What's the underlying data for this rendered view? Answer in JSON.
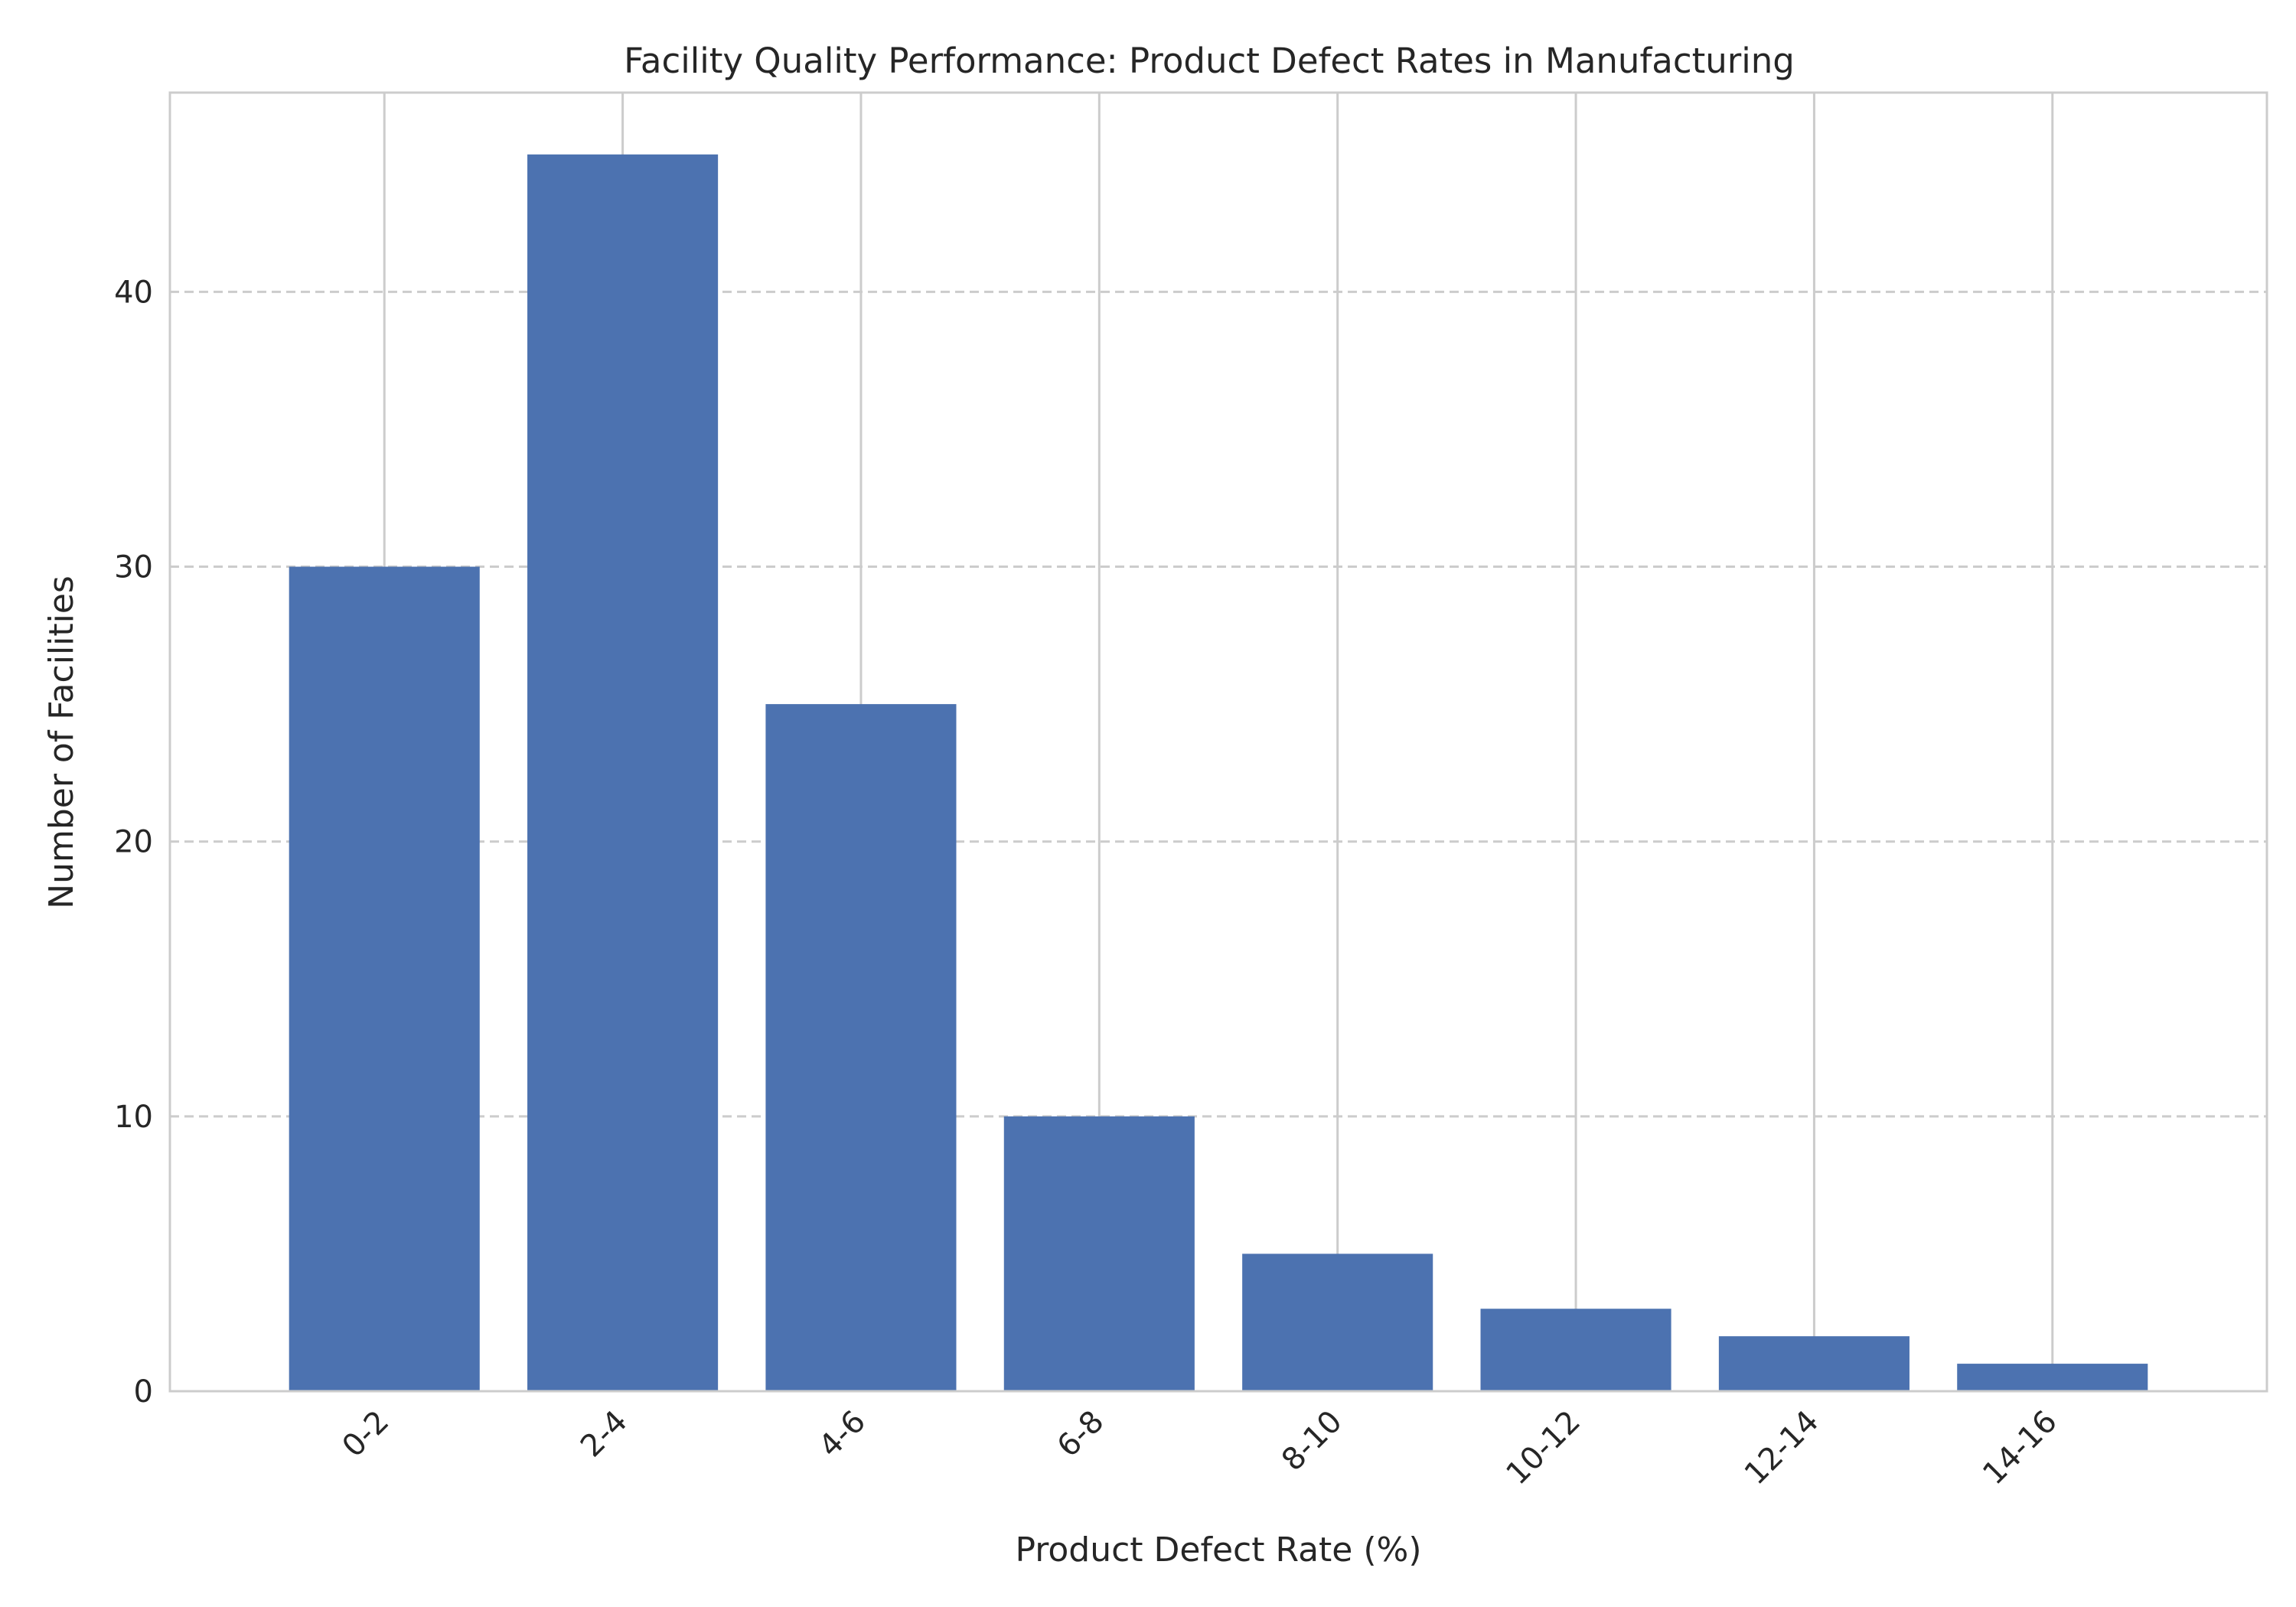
{
  "chart_data": {
    "type": "bar",
    "title": "Facility Quality Performance: Product Defect Rates in Manufacturing",
    "xlabel": "Product Defect Rate (%)",
    "ylabel": "Number of Facilities",
    "categories": [
      "0-2",
      "2-4",
      "4-6",
      "6-8",
      "8-10",
      "10-12",
      "12-14",
      "14-16"
    ],
    "values": [
      30,
      45,
      25,
      10,
      5,
      3,
      2,
      1
    ],
    "ylim": [
      0,
      47.25
    ],
    "yticks": [
      0,
      10,
      20,
      30,
      40
    ],
    "grid": true,
    "bar_color": "#4c72b0",
    "grid_color": "#cccccc",
    "spine_color": "#cccccc"
  }
}
